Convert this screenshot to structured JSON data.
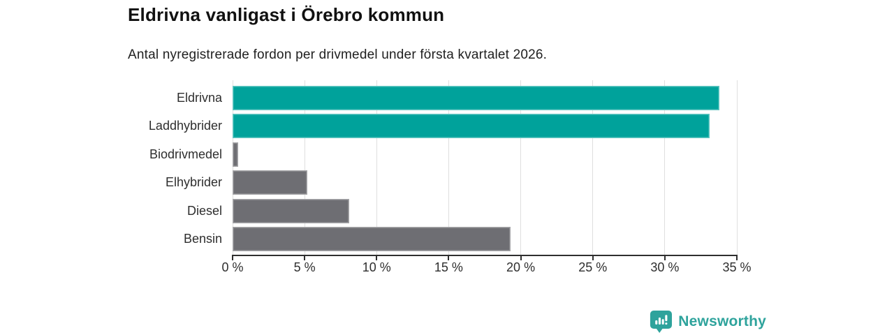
{
  "header": {
    "title": "Eldrivna vanligast i Örebro kommun",
    "subtitle": "Antal nyregistrerade fordon per drivmedel under första kvartalet 2026."
  },
  "chart_data": {
    "type": "bar",
    "orientation": "horizontal",
    "title": "Eldrivna vanligast i Örebro kommun",
    "subtitle": "Antal nyregistrerade fordon per drivmedel under första kvartalet 2026.",
    "categories": [
      "Eldrivna",
      "Laddhybrider",
      "Biodrivmedel",
      "Elhybrider",
      "Diesel",
      "Bensin"
    ],
    "values": [
      33.8,
      33.1,
      0.4,
      5.2,
      8.1,
      19.3
    ],
    "unit": "%",
    "bar_colors": [
      "#00a29b",
      "#00a29b",
      "#6e6e73",
      "#6e6e73",
      "#6e6e73",
      "#6e6e73"
    ],
    "highlight_color": "#00a29b",
    "default_color": "#6e6e73",
    "xlabel": "",
    "ylabel": "",
    "xlim": [
      0,
      35
    ],
    "xticks": [
      0,
      5,
      10,
      15,
      20,
      25,
      30,
      35
    ],
    "xtick_labels": [
      "0 %",
      "5 %",
      "10 %",
      "15 %",
      "20 %",
      "25 %",
      "30 %",
      "35 %"
    ],
    "grid": true,
    "legend": "none"
  },
  "footer": {
    "brand": "Newsworthy",
    "brand_color": "#2ea39c",
    "logo_icon": "newsworthy-bubble-chart-icon"
  },
  "colors": {
    "background": "#ffffff",
    "gridline": "#dfdfdf",
    "axis": "#2e2e2e",
    "title_text": "#111111",
    "label_text": "#2e2e2e"
  }
}
